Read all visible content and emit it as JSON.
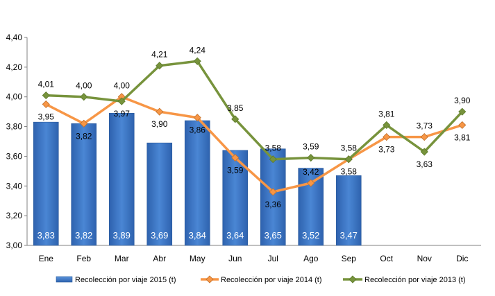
{
  "chart_data": {
    "type": "bar",
    "categories": [
      "Ene",
      "Feb",
      "Mar",
      "Abr",
      "May",
      "Jun",
      "Jul",
      "Ago",
      "Sep",
      "Oct",
      "Nov",
      "Dic"
    ],
    "ylim": [
      3.0,
      4.4
    ],
    "yticks": [
      "3,00",
      "3,20",
      "3,40",
      "3,60",
      "3,80",
      "4,00",
      "4,20",
      "4,40"
    ],
    "grid": false,
    "legend_position": "bottom",
    "series": [
      {
        "name": "Recolección por viaje 2015 (t)",
        "type": "bar",
        "color": "#3A75C4",
        "values": [
          3.83,
          3.82,
          3.89,
          3.69,
          3.84,
          3.64,
          3.65,
          3.52,
          3.47,
          null,
          null,
          null
        ],
        "labels": [
          "3,83",
          "3,82",
          "3,89",
          "3,69",
          "3,84",
          "3,64",
          "3,65",
          "3,52",
          "3,47",
          null,
          null,
          null
        ]
      },
      {
        "name": "Recolección por viaje 2014 (t)",
        "type": "line",
        "color": "#F79646",
        "values": [
          3.95,
          3.82,
          4.0,
          3.9,
          3.86,
          3.59,
          3.36,
          3.42,
          3.58,
          3.73,
          3.73,
          3.81
        ],
        "labels": [
          "3,95",
          "3,82",
          "4,00",
          "3,90",
          "3,86",
          "3,59",
          "3,36",
          "3,42",
          "3,58",
          "3,73",
          "3,73",
          "3,81"
        ]
      },
      {
        "name": "Recolección por viaje 2013 (t)",
        "type": "line",
        "color": "#77933C",
        "values": [
          4.01,
          4.0,
          3.97,
          4.21,
          4.24,
          3.85,
          3.58,
          3.59,
          3.58,
          3.81,
          3.63,
          3.9
        ],
        "labels": [
          "4,01",
          "4,00",
          "3,97",
          "4,21",
          "4,24",
          "3,85",
          "3,58",
          "3,59",
          "3,58",
          "3,81",
          "3,63",
          "3,90"
        ]
      }
    ]
  }
}
